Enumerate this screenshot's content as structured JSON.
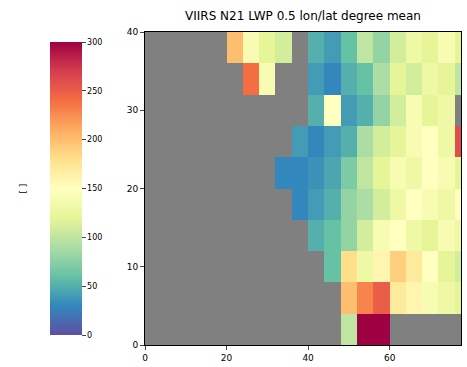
{
  "chart_data": {
    "type": "heatmap",
    "title": "VIIRS N21 LWP 0.5 lon/lat degree mean",
    "x": [
      2,
      6,
      10,
      14,
      18,
      22,
      26,
      30,
      34,
      38,
      42,
      46,
      50,
      54,
      58,
      62,
      66,
      70,
      74,
      78
    ],
    "y": [
      2,
      6,
      10,
      14,
      18,
      22,
      26,
      30,
      34,
      38
    ],
    "z": [
      [
        null,
        null,
        null,
        null,
        null,
        null,
        null,
        null,
        null,
        null,
        null,
        null,
        100,
        300,
        300,
        null,
        null,
        null,
        null,
        null
      ],
      [
        null,
        null,
        null,
        null,
        null,
        null,
        null,
        null,
        null,
        null,
        null,
        null,
        200,
        230,
        250,
        170,
        160,
        140,
        130,
        120
      ],
      [
        null,
        null,
        null,
        null,
        null,
        null,
        null,
        null,
        null,
        null,
        null,
        60,
        180,
        130,
        160,
        190,
        170,
        150,
        120,
        110
      ],
      [
        null,
        null,
        null,
        null,
        null,
        null,
        null,
        null,
        null,
        null,
        50,
        60,
        80,
        110,
        140,
        150,
        130,
        120,
        140,
        130
      ],
      [
        null,
        null,
        null,
        null,
        null,
        null,
        null,
        null,
        null,
        30,
        40,
        50,
        80,
        90,
        110,
        130,
        150,
        140,
        130,
        150
      ],
      [
        null,
        null,
        null,
        null,
        null,
        null,
        null,
        null,
        30,
        30,
        35,
        45,
        70,
        100,
        120,
        140,
        130,
        150,
        140,
        120
      ],
      [
        null,
        null,
        null,
        null,
        null,
        null,
        null,
        null,
        null,
        40,
        30,
        40,
        50,
        90,
        110,
        120,
        140,
        150,
        130,
        260
      ],
      [
        null,
        null,
        null,
        null,
        null,
        null,
        null,
        null,
        null,
        null,
        50,
        150,
        40,
        50,
        80,
        110,
        140,
        120,
        130,
        null
      ],
      [
        null,
        null,
        null,
        null,
        null,
        null,
        240,
        140,
        null,
        null,
        40,
        30,
        50,
        60,
        90,
        120,
        110,
        130,
        120,
        100
      ],
      [
        null,
        null,
        null,
        null,
        null,
        200,
        140,
        120,
        110,
        null,
        50,
        40,
        60,
        100,
        80,
        110,
        130,
        120,
        140,
        120
      ]
    ],
    "xlim": [
      0,
      77.5
    ],
    "ylim": [
      0,
      40
    ],
    "xticks": [
      0,
      20,
      40,
      60
    ],
    "yticks": [
      0,
      10,
      20,
      30,
      40
    ],
    "colorbar": {
      "label": "[ ]",
      "range": [
        0,
        300
      ],
      "ticks": [
        0,
        50,
        100,
        150,
        200,
        250,
        300
      ]
    }
  }
}
